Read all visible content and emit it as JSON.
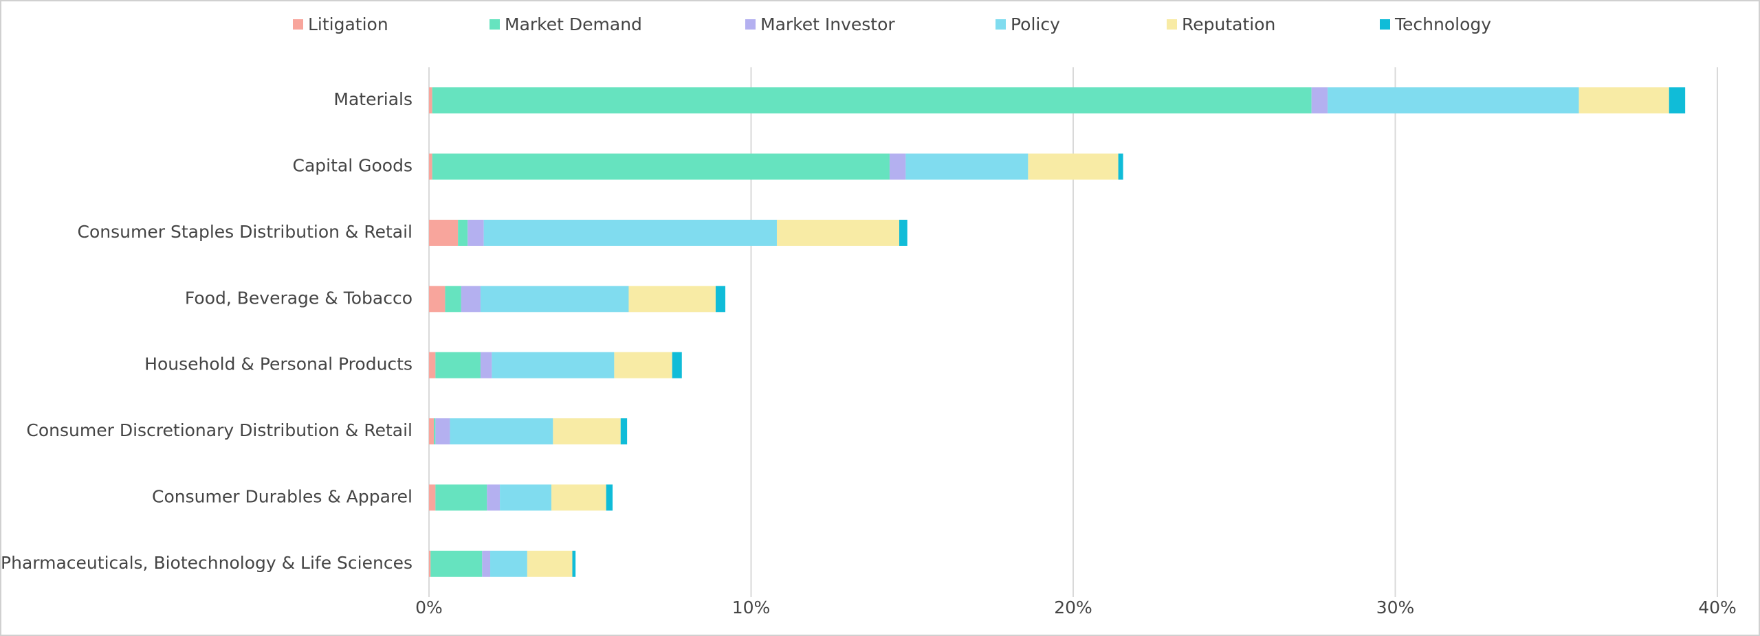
{
  "chart_data": {
    "type": "stacked-bar-horizontal",
    "categories": [
      "Materials",
      "Capital Goods",
      "Consumer Staples Distribution & Retail",
      "Food, Beverage & Tobacco",
      "Household & Personal Products",
      "Consumer Discretionary Distribution & Retail",
      "Consumer Durables & Apparel",
      "Pharmaceuticals, Biotechnology & Life Sciences"
    ],
    "series": [
      {
        "name": "Litigation",
        "color": "#f8a59c",
        "values": [
          0.1,
          0.1,
          0.9,
          0.5,
          0.2,
          0.15,
          0.2,
          0.05
        ]
      },
      {
        "name": "Market Demand",
        "color": "#66e3bf",
        "values": [
          27.3,
          14.2,
          0.3,
          0.5,
          1.4,
          0.05,
          1.6,
          1.6
        ]
      },
      {
        "name": "Market Investor",
        "color": "#b4b0f0",
        "values": [
          0.5,
          0.5,
          0.5,
          0.6,
          0.35,
          0.45,
          0.4,
          0.25
        ]
      },
      {
        "name": "Policy",
        "color": "#80dcef",
        "values": [
          7.8,
          3.8,
          9.1,
          4.6,
          3.8,
          3.2,
          1.6,
          1.15
        ]
      },
      {
        "name": "Reputation",
        "color": "#f8eba5",
        "values": [
          2.8,
          2.8,
          3.8,
          2.7,
          1.8,
          2.1,
          1.7,
          1.4
        ]
      },
      {
        "name": "Technology",
        "color": "#10bcd8",
        "values": [
          0.5,
          0.15,
          0.25,
          0.3,
          0.3,
          0.2,
          0.2,
          0.1
        ]
      }
    ],
    "xlim": [
      0,
      40
    ],
    "xticks": [
      {
        "value": 0,
        "label": "0%"
      },
      {
        "value": 10,
        "label": "10%"
      },
      {
        "value": 20,
        "label": "20%"
      },
      {
        "value": 30,
        "label": "30%"
      },
      {
        "value": 40,
        "label": "40%"
      }
    ],
    "grid": true,
    "legend": "top"
  }
}
